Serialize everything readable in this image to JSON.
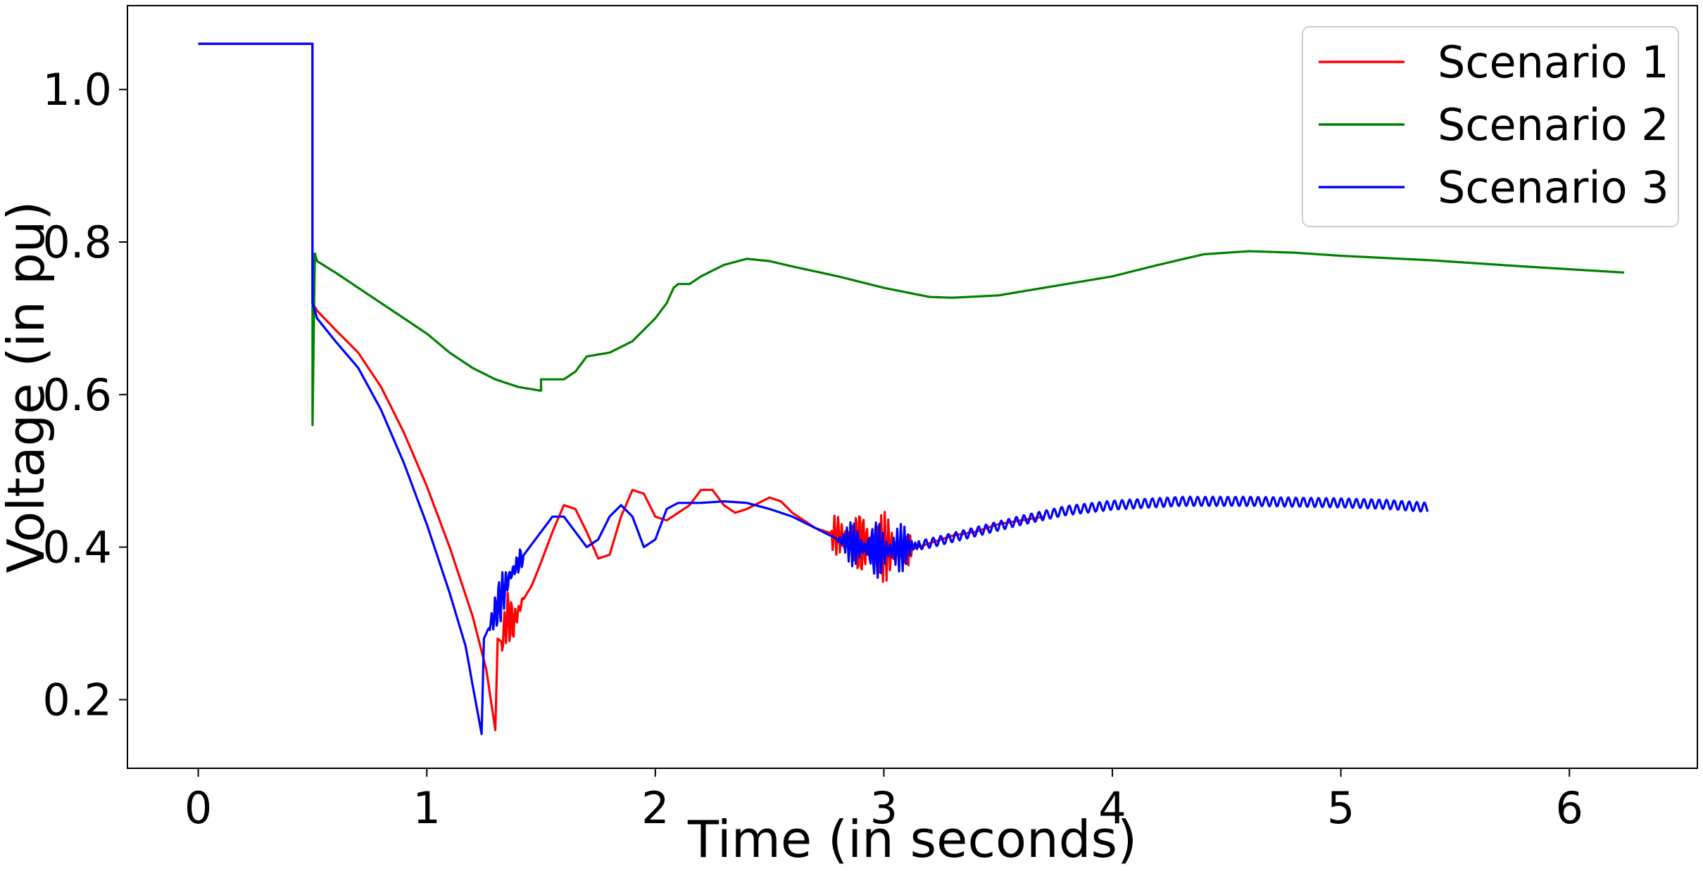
{
  "chart_data": {
    "type": "line",
    "title": "",
    "xlabel": "Time (in seconds)",
    "ylabel": "Voltage (in pu)",
    "xlim": [
      -0.31,
      6.56
    ],
    "ylim": [
      0.11,
      1.11
    ],
    "xticks": [
      0,
      1,
      2,
      3,
      4,
      5,
      6
    ],
    "xtick_labels": [
      "0",
      "1",
      "2",
      "3",
      "4",
      "5",
      "6"
    ],
    "yticks": [
      0.2,
      0.4,
      0.6,
      0.8,
      1.0
    ],
    "ytick_labels": [
      "0.2",
      "0.4",
      "0.6",
      "0.8",
      "1.0"
    ],
    "grid": false,
    "legend_position": "top-right",
    "series": [
      {
        "name": "Scenario 1",
        "color": "#ff0000",
        "points": [
          [
            0,
            1.06
          ],
          [
            0.5,
            1.06
          ],
          [
            0.5,
            0.72
          ],
          [
            0.52,
            0.71
          ],
          [
            0.6,
            0.685
          ],
          [
            0.7,
            0.655
          ],
          [
            0.8,
            0.61
          ],
          [
            0.9,
            0.55
          ],
          [
            1.0,
            0.48
          ],
          [
            1.1,
            0.4
          ],
          [
            1.2,
            0.31
          ],
          [
            1.26,
            0.24
          ],
          [
            1.3,
            0.16
          ],
          [
            1.31,
            0.28
          ],
          [
            1.33,
            0.275
          ],
          [
            1.35,
            0.31
          ],
          [
            1.38,
            0.3
          ],
          [
            1.42,
            0.33
          ],
          [
            1.46,
            0.35
          ],
          [
            1.5,
            0.38
          ],
          [
            1.55,
            0.42
          ],
          [
            1.6,
            0.455
          ],
          [
            1.65,
            0.45
          ],
          [
            1.7,
            0.42
          ],
          [
            1.75,
            0.385
          ],
          [
            1.8,
            0.39
          ],
          [
            1.85,
            0.44
          ],
          [
            1.9,
            0.475
          ],
          [
            1.95,
            0.47
          ],
          [
            2.0,
            0.44
          ],
          [
            2.05,
            0.435
          ],
          [
            2.1,
            0.445
          ],
          [
            2.15,
            0.455
          ],
          [
            2.2,
            0.475
          ],
          [
            2.25,
            0.475
          ],
          [
            2.3,
            0.455
          ],
          [
            2.35,
            0.445
          ],
          [
            2.4,
            0.45
          ],
          [
            2.5,
            0.465
          ],
          [
            2.55,
            0.46
          ],
          [
            2.6,
            0.445
          ],
          [
            2.7,
            0.425
          ],
          [
            2.8,
            0.415
          ],
          [
            2.9,
            0.405
          ],
          [
            3.0,
            0.4
          ],
          [
            3.1,
            0.395
          ],
          [
            3.2,
            0.405
          ],
          [
            3.3,
            0.415
          ],
          [
            3.4,
            0.42
          ],
          [
            3.5,
            0.43
          ],
          [
            3.6,
            0.435
          ],
          [
            3.7,
            0.44
          ]
        ],
        "noise": [
          [
            1.33,
            1.42,
            0.04
          ],
          [
            2.77,
            3.12,
            0.05
          ]
        ]
      },
      {
        "name": "Scenario 2",
        "color": "#008000",
        "points": [
          [
            0,
            1.06
          ],
          [
            0.5,
            1.06
          ],
          [
            0.5,
            0.56
          ],
          [
            0.51,
            0.785
          ],
          [
            0.52,
            0.775
          ],
          [
            0.6,
            0.76
          ],
          [
            0.7,
            0.74
          ],
          [
            0.8,
            0.72
          ],
          [
            0.9,
            0.7
          ],
          [
            1.0,
            0.68
          ],
          [
            1.1,
            0.655
          ],
          [
            1.2,
            0.635
          ],
          [
            1.3,
            0.62
          ],
          [
            1.4,
            0.61
          ],
          [
            1.5,
            0.605
          ],
          [
            1.5,
            0.62
          ],
          [
            1.6,
            0.62
          ],
          [
            1.65,
            0.63
          ],
          [
            1.7,
            0.65
          ],
          [
            1.8,
            0.655
          ],
          [
            1.9,
            0.67
          ],
          [
            2.0,
            0.7
          ],
          [
            2.05,
            0.72
          ],
          [
            2.08,
            0.74
          ],
          [
            2.1,
            0.745
          ],
          [
            2.15,
            0.745
          ],
          [
            2.2,
            0.755
          ],
          [
            2.3,
            0.77
          ],
          [
            2.4,
            0.778
          ],
          [
            2.5,
            0.775
          ],
          [
            2.6,
            0.768
          ],
          [
            2.8,
            0.755
          ],
          [
            3.0,
            0.74
          ],
          [
            3.2,
            0.728
          ],
          [
            3.3,
            0.727
          ],
          [
            3.5,
            0.73
          ],
          [
            3.7,
            0.74
          ],
          [
            4.0,
            0.755
          ],
          [
            4.2,
            0.77
          ],
          [
            4.4,
            0.784
          ],
          [
            4.6,
            0.788
          ],
          [
            4.8,
            0.786
          ],
          [
            5.0,
            0.782
          ],
          [
            5.4,
            0.776
          ],
          [
            5.8,
            0.768
          ],
          [
            6.24,
            0.76
          ]
        ],
        "noise": []
      },
      {
        "name": "Scenario 3",
        "color": "#0000ff",
        "points": [
          [
            0,
            1.06
          ],
          [
            0.5,
            1.06
          ],
          [
            0.5,
            0.72
          ],
          [
            0.52,
            0.7
          ],
          [
            0.6,
            0.67
          ],
          [
            0.7,
            0.635
          ],
          [
            0.8,
            0.58
          ],
          [
            0.9,
            0.51
          ],
          [
            1.0,
            0.43
          ],
          [
            1.1,
            0.34
          ],
          [
            1.17,
            0.27
          ],
          [
            1.2,
            0.22
          ],
          [
            1.24,
            0.155
          ],
          [
            1.25,
            0.28
          ],
          [
            1.28,
            0.3
          ],
          [
            1.32,
            0.33
          ],
          [
            1.36,
            0.36
          ],
          [
            1.4,
            0.38
          ],
          [
            1.45,
            0.4
          ],
          [
            1.5,
            0.42
          ],
          [
            1.55,
            0.44
          ],
          [
            1.6,
            0.44
          ],
          [
            1.65,
            0.42
          ],
          [
            1.7,
            0.4
          ],
          [
            1.75,
            0.41
          ],
          [
            1.8,
            0.44
          ],
          [
            1.85,
            0.455
          ],
          [
            1.9,
            0.44
          ],
          [
            1.95,
            0.4
          ],
          [
            2.0,
            0.41
          ],
          [
            2.05,
            0.45
          ],
          [
            2.1,
            0.458
          ],
          [
            2.2,
            0.458
          ],
          [
            2.3,
            0.46
          ],
          [
            2.4,
            0.458
          ],
          [
            2.5,
            0.45
          ],
          [
            2.6,
            0.44
          ],
          [
            2.7,
            0.425
          ],
          [
            2.8,
            0.41
          ],
          [
            2.9,
            0.4
          ],
          [
            3.0,
            0.395
          ],
          [
            3.2,
            0.405
          ],
          [
            3.4,
            0.42
          ],
          [
            3.6,
            0.435
          ],
          [
            3.8,
            0.448
          ],
          [
            4.0,
            0.455
          ],
          [
            4.3,
            0.46
          ],
          [
            4.6,
            0.46
          ],
          [
            5.0,
            0.458
          ],
          [
            5.2,
            0.456
          ],
          [
            5.38,
            0.452
          ]
        ],
        "noise": [
          [
            1.27,
            1.42,
            0.035
          ],
          [
            2.8,
            3.15,
            0.04
          ]
        ]
      }
    ]
  }
}
